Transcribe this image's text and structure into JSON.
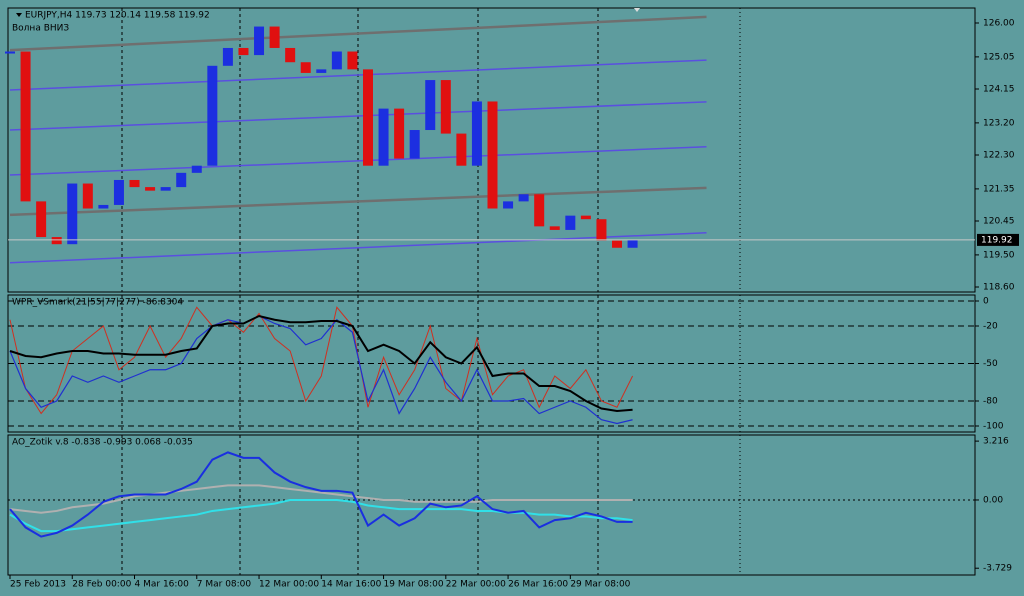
{
  "chart_data": [
    {
      "type": "candlestick",
      "title": "EURJPY,H4 119.73 120.14 119.58 119.92",
      "subtitle": "Волна ВНИЗ",
      "xlim": [
        0,
        248
      ],
      "ylim": [
        118.46,
        126.42
      ],
      "yticks": [
        {
          "value": 126,
          "label": "126.00"
        },
        125.05,
        124.15,
        {
          "value": 123.2,
          "label": "123.20"
        },
        {
          "value": 122.3,
          "label": "122.30"
        },
        121.35,
        120.45,
        {
          "value": 119.5,
          "label": "119.50"
        },
        {
          "value": 118.6,
          "label": "118.60"
        }
      ],
      "x": [
        0,
        4,
        8,
        12,
        16,
        20,
        24,
        28,
        32,
        36,
        40,
        44,
        48,
        52,
        56,
        60,
        64,
        68,
        72,
        76,
        80,
        84,
        88,
        92,
        96,
        100,
        104,
        108,
        112,
        116,
        120,
        124,
        128,
        132,
        136,
        140,
        144,
        148,
        152,
        156,
        160
      ],
      "values": [
        125.2,
        121.0,
        120.0,
        119.8,
        121.5,
        120.8,
        120.9,
        121.6,
        121.4,
        121.3,
        121.4,
        121.8,
        122.0,
        124.8,
        125.3,
        125.1,
        125.9,
        125.3,
        124.9,
        124.6,
        124.7,
        125.2,
        124.7,
        122.0,
        123.6,
        122.2,
        123.0,
        124.4,
        122.9,
        122.0,
        123.8,
        120.8,
        121.0,
        121.2,
        120.3,
        120.2,
        120.6,
        120.5,
        119.9,
        119.7,
        119.92
      ],
      "up_color": "#1c2fe0",
      "down_color": "#e01010",
      "trend_lines": [
        {
          "color": "#6f6f6f",
          "x": [
            0,
            179
          ],
          "values": [
            125.24,
            126.17
          ]
        },
        {
          "color": "#5a4fe0",
          "x": [
            0,
            179
          ],
          "values": [
            124.12,
            124.96
          ]
        },
        {
          "color": "#5a4fe0",
          "x": [
            0,
            179
          ],
          "values": [
            123.0,
            123.79
          ]
        },
        {
          "color": "#5a4fe0",
          "x": [
            0,
            179
          ],
          "values": [
            121.74,
            122.53
          ]
        },
        {
          "color": "#6f6f6f",
          "x": [
            0,
            179
          ],
          "values": [
            120.62,
            121.38
          ]
        },
        {
          "color": "#5a4fe0",
          "x": [
            0,
            179
          ],
          "values": [
            119.28,
            120.12
          ]
        }
      ],
      "last": 119.92
    },
    {
      "type": "line",
      "title": "WPR_VSmark(21|55|77|277) -86.8304",
      "xlim": [
        0,
        248
      ],
      "ylim": [
        -104.8,
        4.8
      ],
      "yticks": [
        0,
        -20,
        -50,
        -80,
        -100
      ],
      "grid": true,
      "x": [
        0,
        4,
        8,
        12,
        16,
        20,
        24,
        28,
        32,
        36,
        40,
        44,
        48,
        52,
        56,
        60,
        64,
        68,
        72,
        76,
        80,
        84,
        88,
        92,
        96,
        100,
        104,
        108,
        112,
        116,
        120,
        124,
        128,
        132,
        136,
        140,
        144,
        148,
        152,
        156,
        160
      ],
      "series": [
        {
          "color": "#d03020",
          "width": 1,
          "values": [
            -15,
            -70,
            -90,
            -75,
            -40,
            -30,
            -20,
            -55,
            -45,
            -20,
            -45,
            -30,
            -5,
            -20,
            -15,
            -25,
            -10,
            -30,
            -40,
            -80,
            -60,
            -5,
            -20,
            -85,
            -45,
            -75,
            -55,
            -20,
            -70,
            -80,
            -30,
            -75,
            -60,
            -55,
            -85,
            -60,
            -70,
            -55,
            -80,
            -85,
            -60
          ]
        },
        {
          "color": "#2030d0",
          "width": 1.2,
          "values": [
            -40,
            -70,
            -85,
            -80,
            -60,
            -65,
            -60,
            -65,
            -60,
            -55,
            -55,
            -50,
            -30,
            -20,
            -15,
            -18,
            -12,
            -18,
            -22,
            -35,
            -30,
            -15,
            -25,
            -80,
            -55,
            -90,
            -70,
            -45,
            -65,
            -80,
            -55,
            -80,
            -80,
            -78,
            -90,
            -85,
            -80,
            -85,
            -95,
            -98,
            -95
          ]
        },
        {
          "color": "#000000",
          "width": 2,
          "values": [
            -40,
            -44,
            -45,
            -42,
            -40,
            -40,
            -42,
            -42,
            -43,
            -43,
            -43,
            -40,
            -38,
            -20,
            -18,
            -18,
            -12,
            -15,
            -17,
            -17,
            -16,
            -16,
            -20,
            -40,
            -35,
            -40,
            -50,
            -33,
            -45,
            -50,
            -37,
            -60,
            -58,
            -58,
            -68,
            -68,
            -72,
            -80,
            -86,
            -88,
            -87
          ]
        }
      ]
    },
    {
      "type": "line",
      "title": "AO_Zotik v.8 -0.838 -0.993 0.068 -0.035",
      "xlim": [
        0,
        248
      ],
      "ylim": [
        -4.1,
        3.55
      ],
      "yticks": [
        3.216,
        {
          "value": 0,
          "label": "0.00"
        },
        -3.729
      ],
      "zero_line": true,
      "xticks": [
        {
          "value": 0,
          "label": "25 Feb 2013"
        },
        {
          "value": 16,
          "label": "28 Feb 00:00"
        },
        {
          "value": 32,
          "label": "4 Mar 16:00"
        },
        {
          "value": 48,
          "label": "7 Mar 08:00"
        },
        {
          "value": 64,
          "label": "12 Mar 00:00"
        },
        {
          "value": 80,
          "label": "14 Mar 16:00"
        },
        {
          "value": 96,
          "label": "19 Mar 08:00"
        },
        {
          "value": 112,
          "label": "22 Mar 00:00"
        },
        {
          "value": 128,
          "label": "26 Mar 16:00"
        },
        {
          "value": 144,
          "label": "29 Mar 08:00"
        }
      ],
      "x": [
        0,
        4,
        8,
        12,
        16,
        20,
        24,
        28,
        32,
        36,
        40,
        44,
        48,
        52,
        56,
        60,
        64,
        68,
        72,
        76,
        80,
        84,
        88,
        92,
        96,
        100,
        104,
        108,
        112,
        116,
        120,
        124,
        128,
        132,
        136,
        140,
        144,
        148,
        152,
        156,
        160
      ],
      "series": [
        {
          "color": "#b0b0b0",
          "width": 2,
          "values": [
            -0.5,
            -0.6,
            -0.7,
            -0.6,
            -0.4,
            -0.3,
            -0.2,
            0.0,
            0.2,
            0.3,
            0.4,
            0.5,
            0.6,
            0.7,
            0.8,
            0.8,
            0.8,
            0.7,
            0.6,
            0.5,
            0.4,
            0.3,
            0.2,
            0.1,
            0.0,
            0.0,
            -0.1,
            -0.1,
            -0.1,
            -0.1,
            -0.1,
            0.0,
            0.0,
            0.0,
            0.0,
            0.0,
            0.0,
            0.0,
            0.0,
            0.0,
            0.0
          ]
        },
        {
          "color": "#30e0e8",
          "width": 2,
          "values": [
            -0.8,
            -1.3,
            -1.7,
            -1.7,
            -1.6,
            -1.5,
            -1.4,
            -1.3,
            -1.2,
            -1.1,
            -1.0,
            -0.9,
            -0.8,
            -0.6,
            -0.5,
            -0.4,
            -0.3,
            -0.2,
            0.0,
            0.0,
            0.0,
            0.0,
            -0.1,
            -0.3,
            -0.4,
            -0.5,
            -0.5,
            -0.5,
            -0.5,
            -0.5,
            -0.6,
            -0.6,
            -0.7,
            -0.7,
            -0.8,
            -0.8,
            -0.9,
            -0.9,
            -1.0,
            -1.0,
            -1.1
          ]
        },
        {
          "color": "#1a2fe0",
          "width": 2,
          "values": [
            -0.5,
            -1.5,
            -2.0,
            -1.8,
            -1.4,
            -0.8,
            -0.1,
            0.2,
            0.3,
            0.3,
            0.3,
            0.6,
            1.0,
            2.2,
            2.6,
            2.3,
            2.3,
            1.5,
            1.0,
            0.7,
            0.5,
            0.5,
            0.4,
            -1.4,
            -0.8,
            -1.4,
            -1.0,
            -0.2,
            -0.4,
            -0.3,
            0.2,
            -0.5,
            -0.7,
            -0.6,
            -1.5,
            -1.1,
            -1.0,
            -0.7,
            -0.9,
            -1.2,
            -1.2
          ]
        }
      ]
    }
  ]
}
